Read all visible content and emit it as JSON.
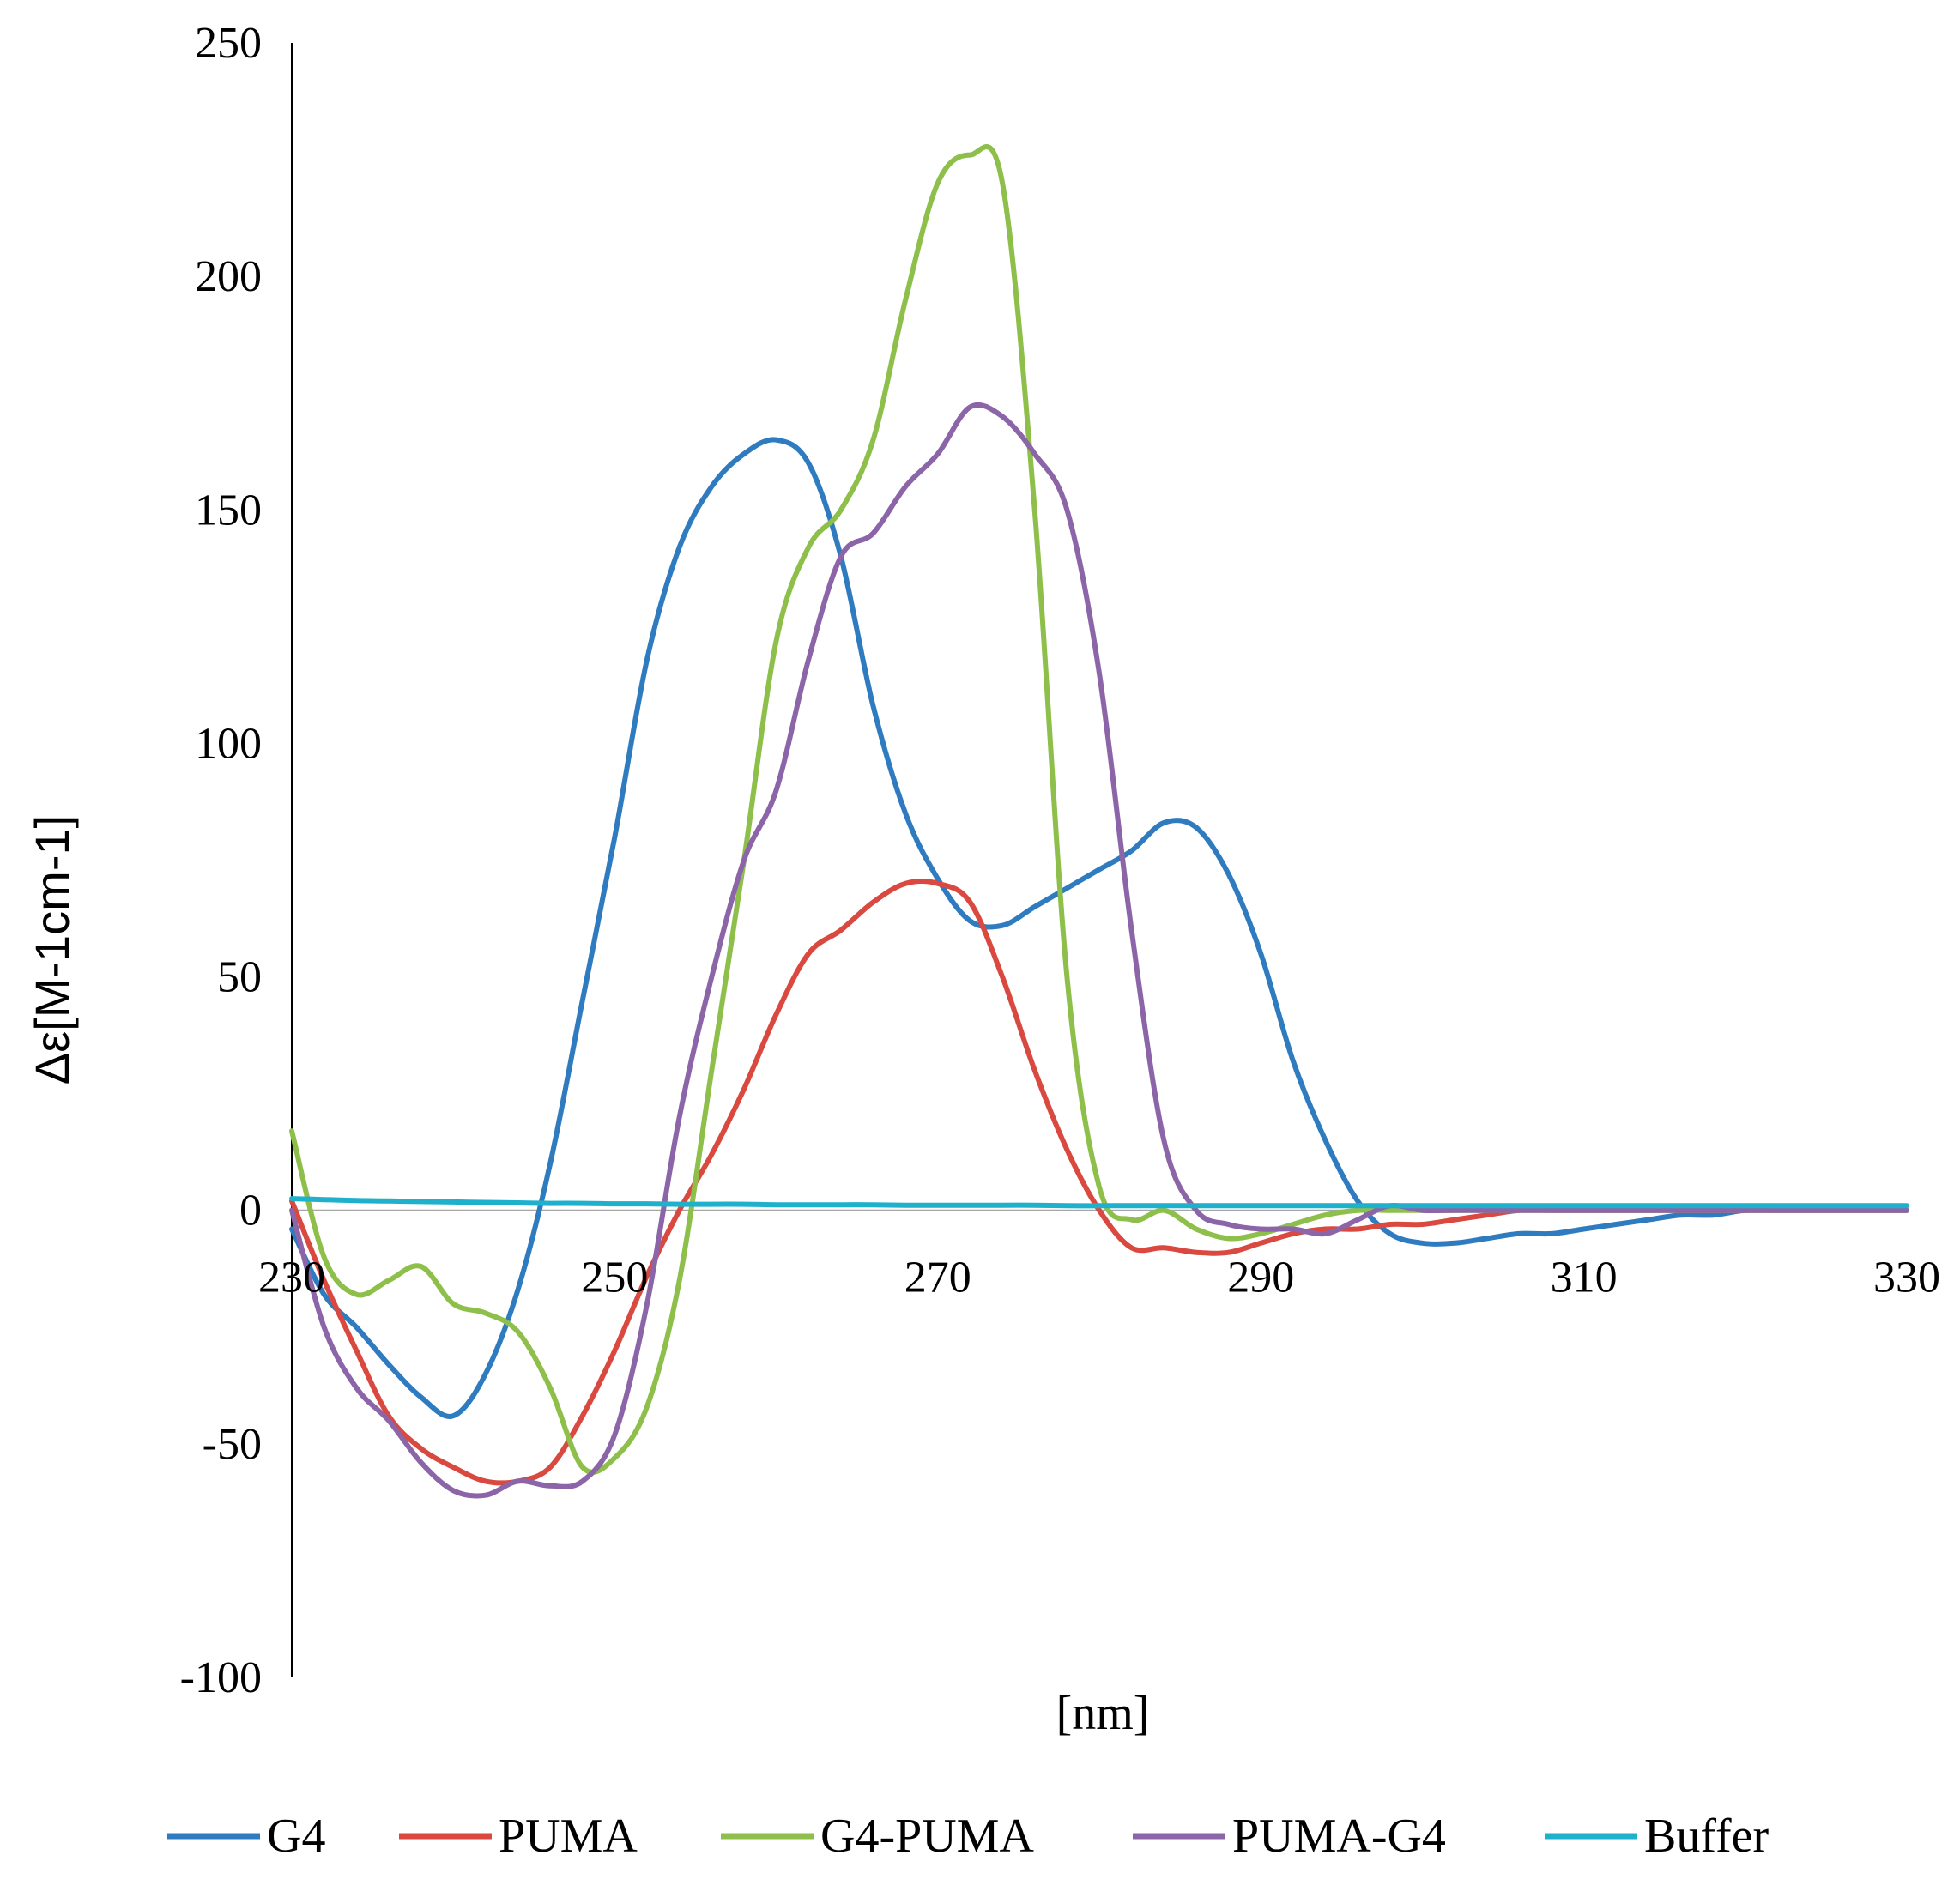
{
  "chart_data": {
    "type": "line",
    "title": "",
    "xlabel": "[nm]",
    "ylabel": "Δε[M-1cm-1]",
    "xlim": [
      230,
      330
    ],
    "ylim": [
      -100,
      250
    ],
    "x_ticks": [
      230,
      250,
      270,
      290,
      310,
      330
    ],
    "x_tick_labels": [
      "230",
      "250",
      "270",
      "290",
      "310",
      "330"
    ],
    "y_ticks": [
      -100,
      -50,
      0,
      50,
      100,
      150,
      200,
      250
    ],
    "y_tick_labels": [
      "-100",
      "-50",
      "0",
      "50",
      "100",
      "150",
      "200",
      "250"
    ],
    "grid": false,
    "legend_position": "bottom",
    "x": [
      230,
      232,
      234,
      236,
      238,
      240,
      242,
      244,
      246,
      248,
      250,
      252,
      254,
      256,
      258,
      260,
      262,
      264,
      266,
      268,
      270,
      272,
      274,
      276,
      278,
      280,
      282,
      284,
      286,
      288,
      290,
      292,
      294,
      296,
      298,
      300,
      302,
      304,
      306,
      308,
      310,
      312,
      314,
      316,
      318,
      320,
      322,
      324,
      326,
      328,
      330
    ],
    "series": [
      {
        "name": "G4",
        "color": "#2f7bbf",
        "values": [
          -4,
          -18,
          -25,
          -33,
          -40,
          -44,
          -35,
          -17,
          10,
          45,
          80,
          118,
          142,
          155,
          162,
          165,
          160,
          140,
          108,
          85,
          71,
          62,
          61,
          65,
          69,
          73,
          77,
          83,
          82,
          72,
          55,
          32,
          15,
          2,
          -5,
          -7,
          -7,
          -6,
          -5,
          -5,
          -4,
          -3,
          -2,
          -1,
          -1,
          0,
          0,
          0,
          0,
          0,
          0
        ]
      },
      {
        "name": "PUMA",
        "color": "#d9493f",
        "values": [
          2,
          -15,
          -30,
          -44,
          -51,
          -55,
          -58,
          -58,
          -55,
          -44,
          -30,
          -14,
          0,
          12,
          26,
          42,
          55,
          60,
          66,
          70,
          70,
          66,
          50,
          30,
          13,
          0,
          -8,
          -8,
          -9,
          -9,
          -7,
          -5,
          -4,
          -4,
          -3,
          -3,
          -2,
          -1,
          0,
          0,
          0,
          0,
          0,
          0,
          0,
          0,
          0,
          0,
          0,
          0,
          0
        ]
      },
      {
        "name": "G4-PUMA",
        "color": "#8ebf4a",
        "values": [
          17,
          -10,
          -18,
          -15,
          -12,
          -20,
          -22,
          -26,
          -38,
          -55,
          -53,
          -42,
          -15,
          30,
          75,
          122,
          142,
          150,
          165,
          195,
          220,
          226,
          220,
          150,
          50,
          5,
          -2,
          0,
          -4,
          -6,
          -5,
          -3,
          -1,
          0,
          0,
          0,
          0,
          0,
          0,
          0,
          0,
          0,
          0,
          0,
          0,
          0,
          0,
          0,
          0,
          0,
          0
        ]
      },
      {
        "name": "PUMA-G4",
        "color": "#8b65a8",
        "values": [
          0,
          -25,
          -38,
          -45,
          -54,
          -60,
          -61,
          -58,
          -59,
          -58,
          -48,
          -20,
          20,
          50,
          75,
          90,
          118,
          140,
          145,
          155,
          162,
          172,
          170,
          162,
          150,
          115,
          60,
          15,
          0,
          -3,
          -4,
          -4,
          -5,
          -2,
          1,
          0,
          0,
          0,
          0,
          0,
          0,
          0,
          0,
          0,
          0,
          0,
          0,
          0,
          0,
          0,
          0
        ]
      },
      {
        "name": "Buffer",
        "color": "#1fb1cc",
        "values": [
          2.5,
          2.3,
          2.1,
          2.0,
          1.9,
          1.8,
          1.7,
          1.6,
          1.5,
          1.5,
          1.4,
          1.4,
          1.3,
          1.3,
          1.3,
          1.2,
          1.2,
          1.2,
          1.2,
          1.1,
          1.1,
          1.1,
          1.1,
          1.1,
          1.0,
          1.0,
          1.0,
          1.0,
          1.0,
          1.0,
          1.0,
          1.0,
          1.0,
          1.0,
          1.0,
          1.0,
          1.0,
          1.0,
          1.0,
          1.0,
          1.0,
          1.0,
          1.0,
          1.0,
          1.0,
          1.0,
          1.0,
          1.0,
          1.0,
          1.0,
          1.0
        ]
      }
    ]
  }
}
